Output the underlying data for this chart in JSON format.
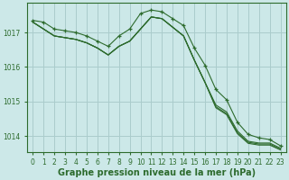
{
  "background_color": "#cce8e8",
  "grid_color": "#aacccc",
  "line_color": "#2d6b2d",
  "xlabel": "Graphe pression niveau de la mer (hPa)",
  "xlabel_fontsize": 7.0,
  "tick_fontsize": 5.5,
  "ylim": [
    1013.55,
    1017.85
  ],
  "yticks": [
    1014,
    1015,
    1016,
    1017
  ],
  "xlim": [
    -0.5,
    23.5
  ],
  "xticks": [
    0,
    1,
    2,
    3,
    4,
    5,
    6,
    7,
    8,
    9,
    10,
    11,
    12,
    13,
    14,
    15,
    16,
    17,
    18,
    19,
    20,
    21,
    22,
    23
  ],
  "series_main": [
    1017.35,
    1017.3,
    1017.1,
    1017.05,
    1017.0,
    1016.9,
    1016.75,
    1016.6,
    1016.9,
    1017.1,
    1017.55,
    1017.65,
    1017.6,
    1017.4,
    1017.2,
    1016.55,
    1016.05,
    1015.35,
    1015.05,
    1014.4,
    1014.05,
    1013.95,
    1013.9,
    1013.72
  ],
  "series_lo1": [
    1017.3,
    1017.1,
    1016.9,
    1016.85,
    1016.8,
    1016.7,
    1016.55,
    1016.35,
    1016.6,
    1016.75,
    1017.1,
    1017.45,
    1017.4,
    1017.15,
    1016.9,
    1016.2,
    1015.55,
    1014.9,
    1014.7,
    1014.15,
    1013.85,
    1013.8,
    1013.8,
    1013.65
  ],
  "series_lo2": [
    1017.3,
    1017.1,
    1016.9,
    1016.85,
    1016.8,
    1016.7,
    1016.55,
    1016.35,
    1016.6,
    1016.75,
    1017.1,
    1017.45,
    1017.4,
    1017.15,
    1016.9,
    1016.2,
    1015.55,
    1014.85,
    1014.65,
    1014.1,
    1013.82,
    1013.77,
    1013.77,
    1013.62
  ],
  "series_lo3": [
    1017.3,
    1017.1,
    1016.9,
    1016.85,
    1016.8,
    1016.7,
    1016.55,
    1016.35,
    1016.6,
    1016.75,
    1017.1,
    1017.45,
    1017.4,
    1017.15,
    1016.9,
    1016.2,
    1015.55,
    1014.82,
    1014.62,
    1014.07,
    1013.79,
    1013.74,
    1013.74,
    1013.6
  ]
}
